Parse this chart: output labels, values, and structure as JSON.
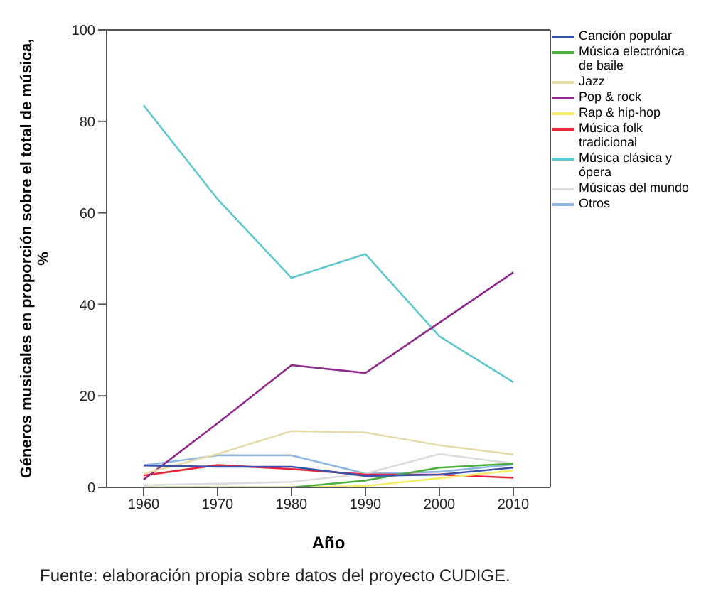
{
  "chart_data": {
    "type": "line",
    "xlabel": "Año",
    "ylabel": "Géneros musicales en proporción sobre el total de música, %",
    "x": [
      1960,
      1970,
      1980,
      1990,
      2000,
      2010
    ],
    "xlim": [
      1955,
      2015
    ],
    "xticks": [
      1960,
      1970,
      1980,
      1990,
      2000,
      2010
    ],
    "ylim": [
      0,
      100
    ],
    "yticks": [
      0,
      20,
      40,
      60,
      80,
      100
    ],
    "legend": "top right",
    "marker": "none",
    "line_style": "solid",
    "series": [
      {
        "name": "Canción popular",
        "color": "#3a52a8",
        "values": [
          4.8,
          4.5,
          4.5,
          2.5,
          2.8,
          4.3
        ]
      },
      {
        "name": "Música electrónica de baile",
        "color": "#4caf3c",
        "values": [
          0,
          0,
          0,
          1.5,
          4.3,
          5.2
        ]
      },
      {
        "name": "Jazz",
        "color": "#e6dcaa",
        "values": [
          3,
          7.3,
          12.3,
          12,
          9.2,
          7.2
        ]
      },
      {
        "name": "Pop & rock",
        "color": "#8e2a8c",
        "values": [
          1.7,
          14,
          26.7,
          25,
          36,
          47
        ]
      },
      {
        "name": "Rap & hip-hop",
        "color": "#f5ec6a",
        "values": [
          0,
          0,
          0,
          0.3,
          2,
          3.7
        ]
      },
      {
        "name": "Música folk tradicional",
        "color": "#e8263a",
        "values": [
          2.6,
          4.9,
          4,
          2.8,
          2.8,
          2.1
        ]
      },
      {
        "name": "Música clásica y ópera",
        "color": "#5ec8cc",
        "values": [
          83.5,
          63,
          45.8,
          51,
          33,
          23
        ]
      },
      {
        "name": "Músicas del mundo",
        "color": "#dcdcdc",
        "values": [
          0.5,
          0.8,
          1.2,
          3,
          7.3,
          5.2
        ]
      },
      {
        "name": "Otros",
        "color": "#8fb8e0",
        "values": [
          4.8,
          7,
          7,
          3,
          3.4,
          5
        ]
      }
    ],
    "annotations": [
      "Fuente: elaboración propia sobre datos del proyecto CUDIGE."
    ]
  }
}
